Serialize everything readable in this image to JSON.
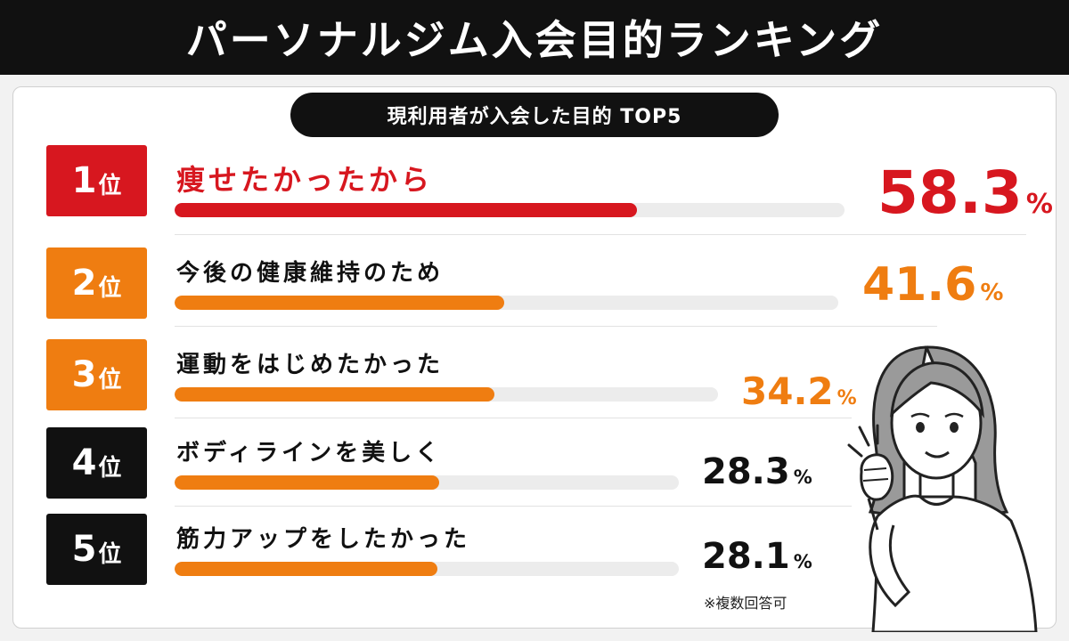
{
  "header": {
    "title": "パーソナルジム入会目的ランキング"
  },
  "subtitle": "現利用者が入会した目的 TOP5",
  "rank_suffix": "位",
  "percent_sign": "%",
  "note": "※複数回答可",
  "colors": {
    "red": "#d7171f",
    "orange": "#ef7d11",
    "black": "#111111",
    "track": "#ececec"
  },
  "chart_data": {
    "type": "bar",
    "categories": [
      "痩せたかったから",
      "今後の健康維持のため",
      "運動をはじめたかった",
      "ボディラインを美しく",
      "筋力アップをしたかった"
    ],
    "values": [
      58.3,
      41.6,
      34.2,
      28.3,
      28.1
    ],
    "value_labels": [
      "58.3",
      "41.6",
      "34.2",
      "28.3",
      "28.1"
    ],
    "ranks": [
      "1",
      "2",
      "3",
      "4",
      "5"
    ],
    "unit": "%"
  }
}
